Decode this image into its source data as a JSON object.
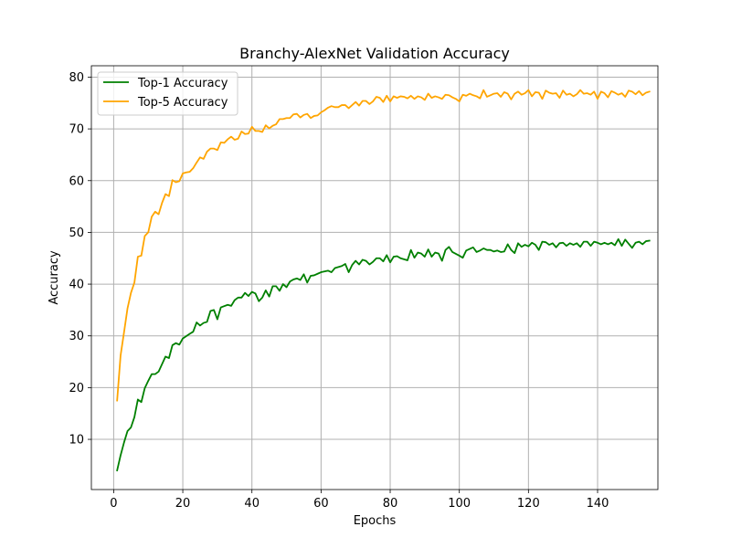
{
  "chart_data": {
    "type": "line",
    "title": "Branchy-AlexNet Validation Accuracy",
    "xlabel": "Epochs",
    "ylabel": "Accuracy",
    "xlim": [
      -6.45,
      157.45
    ],
    "ylim": [
      0.3,
      82.2
    ],
    "xticks": [
      0,
      20,
      40,
      60,
      80,
      100,
      120,
      140
    ],
    "yticks": [
      10,
      20,
      30,
      40,
      50,
      60,
      70,
      80
    ],
    "grid": true,
    "legend_position": "top-left",
    "series": [
      {
        "name": "Top-1 Accuracy",
        "color": "#008000",
        "anchors": [
          [
            1,
            4.0
          ],
          [
            2,
            6.9
          ],
          [
            3,
            9.4
          ],
          [
            4,
            11.6
          ],
          [
            5,
            12.3
          ],
          [
            6,
            14.3
          ],
          [
            7,
            17.7
          ],
          [
            8,
            17.2
          ],
          [
            9,
            19.9
          ],
          [
            10,
            21.3
          ],
          [
            11,
            22.6
          ],
          [
            12,
            22.6
          ],
          [
            13,
            23.1
          ],
          [
            15,
            26.0
          ],
          [
            16,
            25.7
          ],
          [
            17,
            28.2
          ],
          [
            18,
            28.6
          ],
          [
            19,
            28.3
          ],
          [
            20,
            29.5
          ],
          [
            22,
            30.4
          ],
          [
            23,
            30.8
          ],
          [
            24,
            32.6
          ],
          [
            25,
            32.0
          ],
          [
            26,
            32.5
          ],
          [
            27,
            32.7
          ],
          [
            28,
            34.8
          ],
          [
            29,
            35.0
          ],
          [
            30,
            33.2
          ],
          [
            31,
            35.5
          ],
          [
            33,
            36.0
          ],
          [
            34,
            35.8
          ],
          [
            35,
            36.9
          ],
          [
            36,
            37.4
          ],
          [
            37,
            37.4
          ],
          [
            38,
            38.3
          ],
          [
            39,
            37.7
          ],
          [
            40,
            38.5
          ],
          [
            41,
            38.2
          ],
          [
            42,
            36.7
          ],
          [
            43,
            37.4
          ],
          [
            44,
            38.8
          ],
          [
            45,
            37.6
          ],
          [
            46,
            39.6
          ],
          [
            47,
            39.6
          ],
          [
            48,
            38.7
          ],
          [
            49,
            40.0
          ],
          [
            50,
            39.4
          ],
          [
            51,
            40.5
          ],
          [
            52,
            40.9
          ],
          [
            53,
            41.1
          ],
          [
            54,
            40.8
          ],
          [
            55,
            41.9
          ],
          [
            56,
            40.3
          ],
          [
            57,
            41.6
          ],
          [
            58,
            41.7
          ],
          [
            59,
            42.0
          ],
          [
            60,
            42.3
          ],
          [
            62,
            42.6
          ],
          [
            63,
            42.3
          ],
          [
            64,
            43.1
          ],
          [
            66,
            43.5
          ],
          [
            67,
            43.9
          ],
          [
            68,
            42.3
          ],
          [
            69,
            43.7
          ],
          [
            70,
            44.5
          ],
          [
            71,
            43.8
          ],
          [
            72,
            44.7
          ],
          [
            73,
            44.5
          ],
          [
            74,
            43.8
          ],
          [
            75,
            44.3
          ],
          [
            76,
            45.0
          ],
          [
            77,
            45.0
          ],
          [
            78,
            44.4
          ],
          [
            79,
            45.6
          ],
          [
            80,
            44.2
          ],
          [
            81,
            45.3
          ],
          [
            82,
            45.4
          ],
          [
            83,
            45.0
          ],
          [
            84,
            44.8
          ],
          [
            85,
            44.6
          ],
          [
            86,
            46.6
          ],
          [
            87,
            45.1
          ],
          [
            88,
            46.1
          ],
          [
            89,
            45.9
          ],
          [
            90,
            45.3
          ],
          [
            91,
            46.7
          ],
          [
            92,
            45.3
          ],
          [
            93,
            46.1
          ],
          [
            94,
            45.9
          ],
          [
            95,
            44.5
          ],
          [
            96,
            46.6
          ],
          [
            97,
            47.2
          ],
          [
            98,
            46.2
          ],
          [
            100,
            45.5
          ],
          [
            101,
            45.1
          ],
          [
            102,
            46.5
          ],
          [
            104,
            47.1
          ],
          [
            105,
            46.2
          ],
          [
            106,
            46.5
          ],
          [
            107,
            46.9
          ],
          [
            108,
            46.6
          ],
          [
            109,
            46.6
          ],
          [
            110,
            46.3
          ],
          [
            111,
            46.5
          ],
          [
            112,
            46.2
          ],
          [
            113,
            46.3
          ],
          [
            114,
            47.7
          ],
          [
            115,
            46.6
          ],
          [
            116,
            46.0
          ],
          [
            117,
            47.9
          ],
          [
            118,
            47.2
          ],
          [
            119,
            47.6
          ],
          [
            120,
            47.3
          ],
          [
            121,
            48.0
          ],
          [
            122,
            47.6
          ],
          [
            123,
            46.6
          ],
          [
            124,
            48.2
          ],
          [
            125,
            48.1
          ],
          [
            126,
            47.6
          ],
          [
            127,
            47.9
          ],
          [
            128,
            47.1
          ],
          [
            129,
            47.9
          ],
          [
            130,
            48.0
          ],
          [
            131,
            47.4
          ],
          [
            132,
            47.9
          ],
          [
            133,
            47.6
          ],
          [
            134,
            47.9
          ],
          [
            135,
            47.2
          ],
          [
            136,
            48.2
          ],
          [
            137,
            48.2
          ],
          [
            138,
            47.4
          ],
          [
            139,
            48.2
          ],
          [
            140,
            48.0
          ],
          [
            141,
            47.7
          ],
          [
            142,
            48.0
          ],
          [
            143,
            47.7
          ],
          [
            144,
            48.0
          ],
          [
            145,
            47.5
          ],
          [
            146,
            48.7
          ],
          [
            147,
            47.4
          ],
          [
            148,
            48.6
          ],
          [
            149,
            47.8
          ],
          [
            150,
            47.0
          ],
          [
            151,
            48.0
          ],
          [
            152,
            48.2
          ],
          [
            153,
            47.7
          ],
          [
            154,
            48.3
          ],
          [
            155,
            48.4
          ]
        ]
      },
      {
        "name": "Top-5 Accuracy",
        "color": "#FFA500",
        "anchors": [
          [
            1,
            17.5
          ],
          [
            2,
            26.2
          ],
          [
            3,
            30.7
          ],
          [
            4,
            35.3
          ],
          [
            5,
            38.3
          ],
          [
            6,
            40.3
          ],
          [
            7,
            45.3
          ],
          [
            8,
            45.5
          ],
          [
            9,
            49.3
          ],
          [
            10,
            50.0
          ],
          [
            11,
            53.0
          ],
          [
            12,
            54.0
          ],
          [
            13,
            53.5
          ],
          [
            14,
            55.7
          ],
          [
            15,
            57.4
          ],
          [
            16,
            57.0
          ],
          [
            17,
            60.1
          ],
          [
            18,
            59.7
          ],
          [
            19,
            59.9
          ],
          [
            20,
            61.4
          ],
          [
            21,
            61.6
          ],
          [
            22,
            61.7
          ],
          [
            23,
            62.4
          ],
          [
            24,
            63.5
          ],
          [
            25,
            64.5
          ],
          [
            26,
            64.2
          ],
          [
            27,
            65.6
          ],
          [
            28,
            66.2
          ],
          [
            29,
            66.2
          ],
          [
            30,
            65.9
          ],
          [
            31,
            67.4
          ],
          [
            32,
            67.3
          ],
          [
            33,
            68.0
          ],
          [
            34,
            68.5
          ],
          [
            35,
            67.9
          ],
          [
            36,
            68.1
          ],
          [
            37,
            69.5
          ],
          [
            38,
            69.0
          ],
          [
            39,
            69.1
          ],
          [
            40,
            70.4
          ],
          [
            41,
            69.6
          ],
          [
            42,
            69.6
          ],
          [
            43,
            69.4
          ],
          [
            44,
            70.7
          ],
          [
            45,
            70.1
          ],
          [
            46,
            70.6
          ],
          [
            47,
            70.9
          ],
          [
            48,
            71.9
          ],
          [
            49,
            71.9
          ],
          [
            50,
            72.1
          ],
          [
            51,
            72.1
          ],
          [
            52,
            72.8
          ],
          [
            53,
            72.9
          ],
          [
            54,
            72.2
          ],
          [
            55,
            72.7
          ],
          [
            56,
            72.9
          ],
          [
            57,
            72.1
          ],
          [
            58,
            72.5
          ],
          [
            59,
            72.6
          ],
          [
            60,
            73.2
          ],
          [
            61,
            73.6
          ],
          [
            62,
            74.1
          ],
          [
            63,
            74.4
          ],
          [
            64,
            74.2
          ],
          [
            65,
            74.2
          ],
          [
            66,
            74.6
          ],
          [
            67,
            74.6
          ],
          [
            68,
            74.0
          ],
          [
            69,
            74.6
          ],
          [
            70,
            75.2
          ],
          [
            71,
            74.5
          ],
          [
            72,
            75.4
          ],
          [
            73,
            75.4
          ],
          [
            74,
            74.8
          ],
          [
            75,
            75.3
          ],
          [
            76,
            76.2
          ],
          [
            77,
            76.0
          ],
          [
            78,
            75.2
          ],
          [
            79,
            76.4
          ],
          [
            80,
            75.3
          ],
          [
            81,
            76.3
          ],
          [
            82,
            76.0
          ],
          [
            83,
            76.3
          ],
          [
            84,
            76.2
          ],
          [
            85,
            75.9
          ],
          [
            86,
            76.4
          ],
          [
            87,
            75.8
          ],
          [
            88,
            76.3
          ],
          [
            89,
            76.1
          ],
          [
            90,
            75.6
          ],
          [
            91,
            76.8
          ],
          [
            92,
            76.0
          ],
          [
            93,
            76.3
          ],
          [
            94,
            76.1
          ],
          [
            95,
            75.8
          ],
          [
            96,
            76.6
          ],
          [
            97,
            76.5
          ],
          [
            98,
            76.1
          ],
          [
            99,
            75.8
          ],
          [
            100,
            75.3
          ],
          [
            101,
            76.6
          ],
          [
            102,
            76.4
          ],
          [
            103,
            76.8
          ],
          [
            104,
            76.5
          ],
          [
            105,
            76.3
          ],
          [
            106,
            75.9
          ],
          [
            107,
            77.5
          ],
          [
            108,
            76.2
          ],
          [
            109,
            76.5
          ],
          [
            110,
            76.8
          ],
          [
            111,
            76.9
          ],
          [
            112,
            76.2
          ],
          [
            113,
            77.1
          ],
          [
            114,
            76.8
          ],
          [
            115,
            75.7
          ],
          [
            116,
            76.8
          ],
          [
            117,
            77.2
          ],
          [
            118,
            76.6
          ],
          [
            119,
            76.9
          ],
          [
            120,
            77.5
          ],
          [
            121,
            76.3
          ],
          [
            122,
            77.1
          ],
          [
            123,
            77.0
          ],
          [
            124,
            75.8
          ],
          [
            125,
            77.4
          ],
          [
            126,
            77.0
          ],
          [
            127,
            76.8
          ],
          [
            128,
            76.9
          ],
          [
            129,
            76.0
          ],
          [
            130,
            77.4
          ],
          [
            131,
            76.6
          ],
          [
            132,
            76.8
          ],
          [
            133,
            76.3
          ],
          [
            134,
            76.7
          ],
          [
            135,
            77.5
          ],
          [
            136,
            76.8
          ],
          [
            137,
            76.9
          ],
          [
            138,
            76.6
          ],
          [
            139,
            77.2
          ],
          [
            140,
            75.8
          ],
          [
            141,
            77.2
          ],
          [
            142,
            76.9
          ],
          [
            143,
            76.1
          ],
          [
            144,
            77.3
          ],
          [
            145,
            77.0
          ],
          [
            146,
            76.6
          ],
          [
            147,
            76.9
          ],
          [
            148,
            76.2
          ],
          [
            149,
            77.4
          ],
          [
            150,
            77.2
          ],
          [
            151,
            76.7
          ],
          [
            152,
            77.3
          ],
          [
            153,
            76.5
          ],
          [
            154,
            77.0
          ],
          [
            155,
            77.2
          ]
        ]
      }
    ]
  }
}
